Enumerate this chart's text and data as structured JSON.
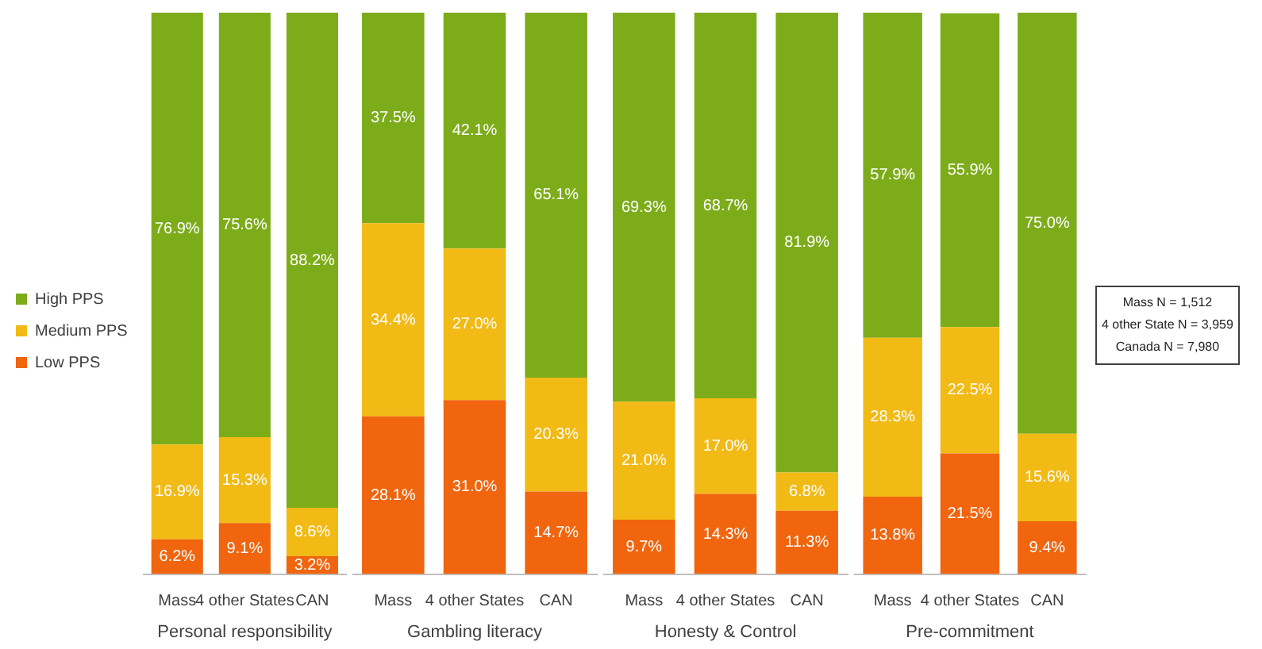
{
  "chart_data": [
    {
      "type": "bar",
      "stacked": true,
      "xlabel": "Personal responsibility",
      "categories": [
        "Mass",
        "4 other States",
        "CAN"
      ],
      "ylim": [
        0,
        100
      ],
      "tick_labels": "x",
      "legend": "left",
      "series": [
        {
          "name": "Low PPS",
          "color": "#f0650e",
          "values": [
            6.2,
            9.1,
            3.2
          ],
          "value_labels": [
            "6.2%",
            "9.1%",
            "3.2%"
          ]
        },
        {
          "name": "Medium PPS",
          "color": "#f1ba15",
          "values": [
            16.9,
            15.3,
            8.6
          ],
          "value_labels": [
            "16.9%",
            "15.3%",
            "8.6%"
          ]
        },
        {
          "name": "High PPS",
          "color": "#7dac1a",
          "values": [
            76.9,
            75.6,
            88.2
          ],
          "value_labels": [
            "76.9%",
            "75.6%",
            "88.2%"
          ]
        }
      ]
    },
    {
      "type": "bar",
      "stacked": true,
      "xlabel": "Gambling literacy",
      "categories": [
        "Mass",
        "4 other States",
        "CAN"
      ],
      "ylim": [
        0,
        100
      ],
      "tick_labels": "x",
      "series": [
        {
          "color": "#f0650e",
          "values": [
            28.1,
            31.0,
            14.7
          ],
          "value_labels": [
            "28.1%",
            "31.0%",
            "14.7%"
          ]
        },
        {
          "color": "#f1ba15",
          "values": [
            34.4,
            27.0,
            20.3
          ],
          "value_labels": [
            "34.4%",
            "27.0%",
            "20.3%"
          ]
        },
        {
          "color": "#7dac1a",
          "values": [
            37.5,
            42.1,
            65.1
          ],
          "value_labels": [
            "37.5%",
            "42.1%",
            "65.1%"
          ]
        }
      ]
    },
    {
      "type": "bar",
      "stacked": true,
      "xlabel": "Honesty & Control",
      "categories": [
        "Mass",
        "4 other States",
        "CAN"
      ],
      "ylim": [
        0,
        100
      ],
      "tick_labels": "x",
      "series": [
        {
          "color": "#f0650e",
          "values": [
            9.7,
            14.3,
            11.3
          ],
          "value_labels": [
            "9.7%",
            "14.3%",
            "11.3%"
          ]
        },
        {
          "color": "#f1ba15",
          "values": [
            21.0,
            17.0,
            6.8
          ],
          "value_labels": [
            "21.0%",
            "17.0%",
            "6.8%"
          ]
        },
        {
          "color": "#7dac1a",
          "values": [
            69.3,
            68.7,
            81.9
          ],
          "value_labels": [
            "69.3%",
            "68.7%",
            "81.9%"
          ]
        }
      ]
    },
    {
      "type": "bar",
      "stacked": true,
      "xlabel": "Pre-commitment",
      "categories": [
        "Mass",
        "4 other States",
        "CAN"
      ],
      "ylim": [
        0,
        100
      ],
      "tick_labels": "x",
      "annotations": [
        "Mass N = 1,512",
        "4 other State N = 3,959",
        "Canada N = 7,980"
      ],
      "series": [
        {
          "color": "#f0650e",
          "values": [
            13.8,
            21.5,
            9.4
          ],
          "value_labels": [
            "13.8%",
            "21.5%",
            "9.4%"
          ]
        },
        {
          "color": "#f1ba15",
          "values": [
            28.3,
            22.5,
            15.6
          ],
          "value_labels": [
            "28.3%",
            "22.5%",
            "15.6%"
          ]
        },
        {
          "color": "#7dac1a",
          "values": [
            57.9,
            55.9,
            75.0
          ],
          "value_labels": [
            "57.9%",
            "55.9%",
            "75.0%"
          ]
        }
      ]
    }
  ]
}
